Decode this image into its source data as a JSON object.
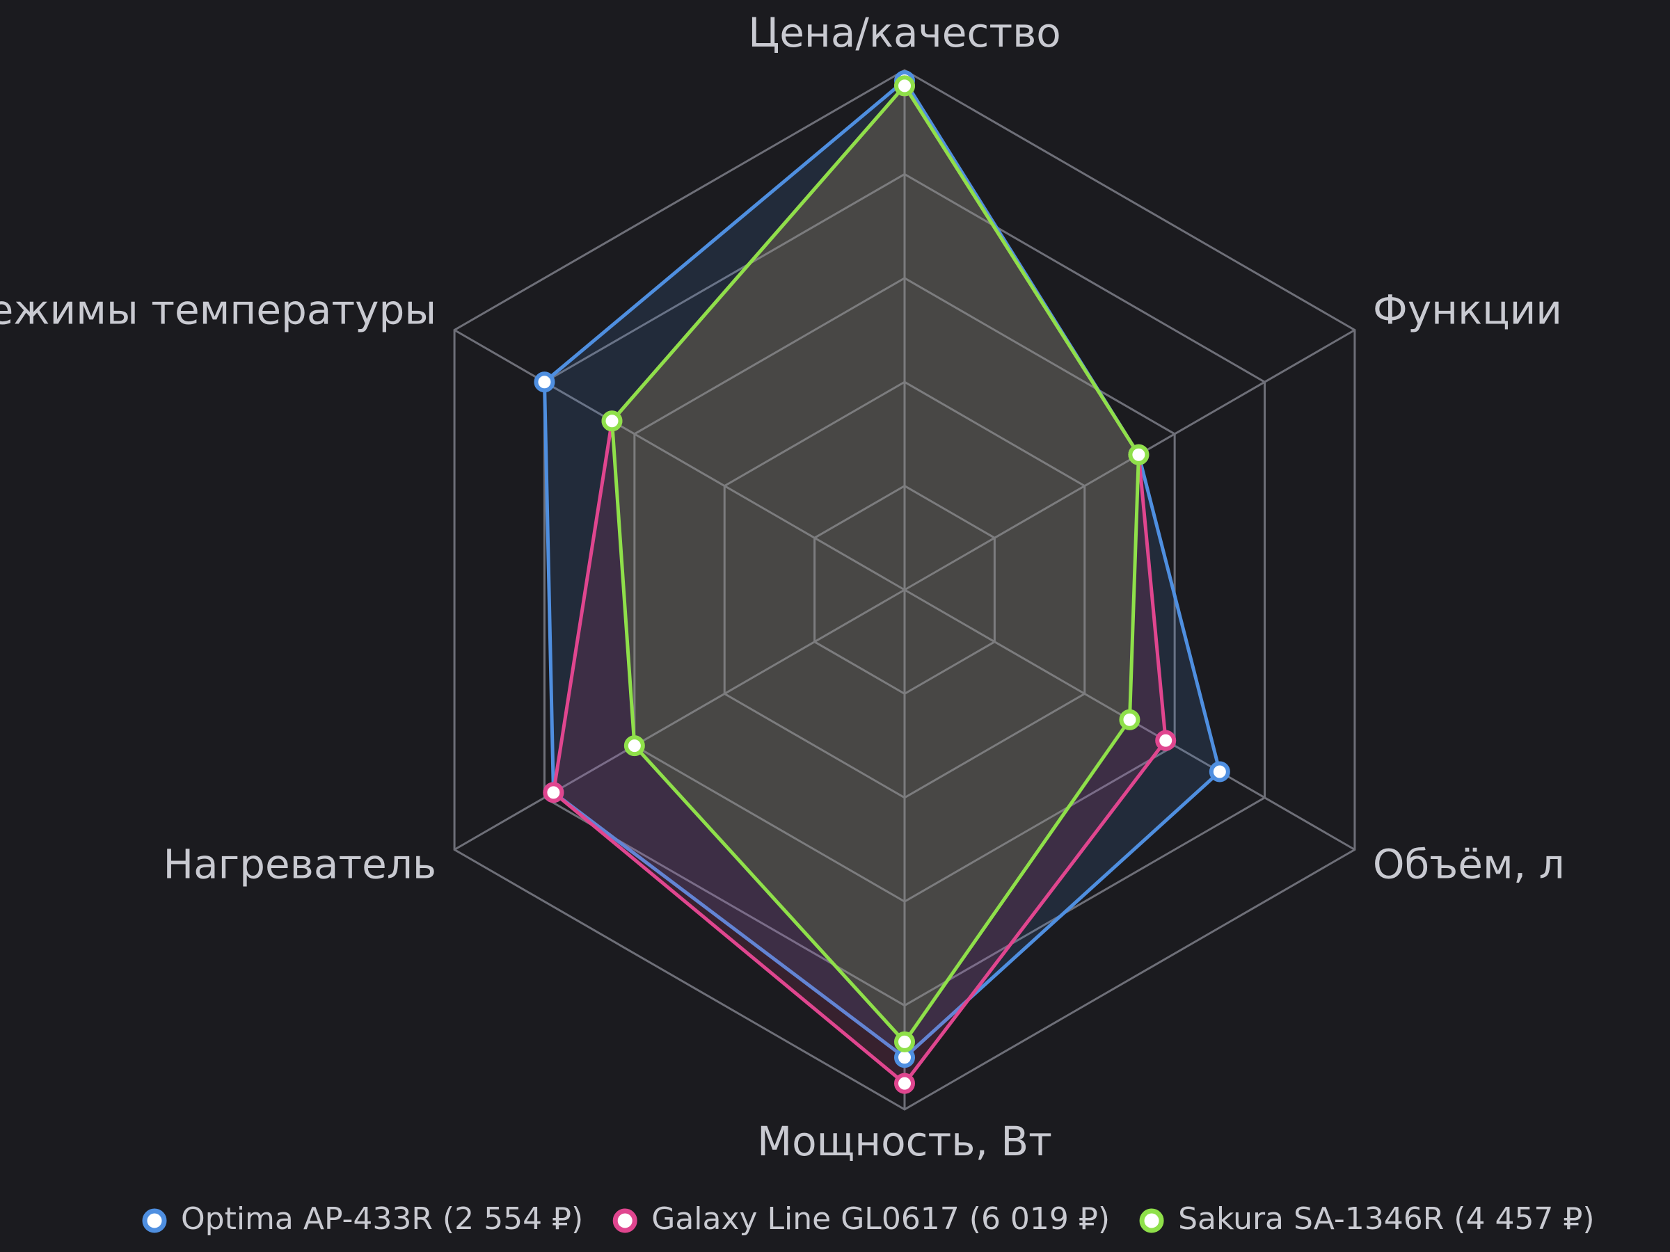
{
  "chart_data": {
    "type": "radar",
    "categories": [
      "Цена/качество",
      "Функции",
      "Объём, л",
      "Мощность, Вт",
      "Нагреватель",
      "Режимы температуры"
    ],
    "series": [
      {
        "name": "Optima AP-433R (2 554 ₽)",
        "color": "#4f8fe0",
        "values": [
          98,
          52,
          70,
          90,
          78,
          80
        ]
      },
      {
        "name": "Galaxy Line GL0617 (6 019 ₽)",
        "color": "#e0468f",
        "values": [
          97,
          52,
          58,
          95,
          78,
          65
        ]
      },
      {
        "name": "Sakura SA-1346R (4 457 ₽)",
        "color": "#8fe04a",
        "values": [
          97,
          52,
          50,
          87,
          60,
          65
        ]
      }
    ],
    "rlim": [
      0,
      100
    ],
    "rticks": [
      20,
      40,
      60,
      80,
      100
    ],
    "grid": true,
    "legend": "bottom"
  }
}
